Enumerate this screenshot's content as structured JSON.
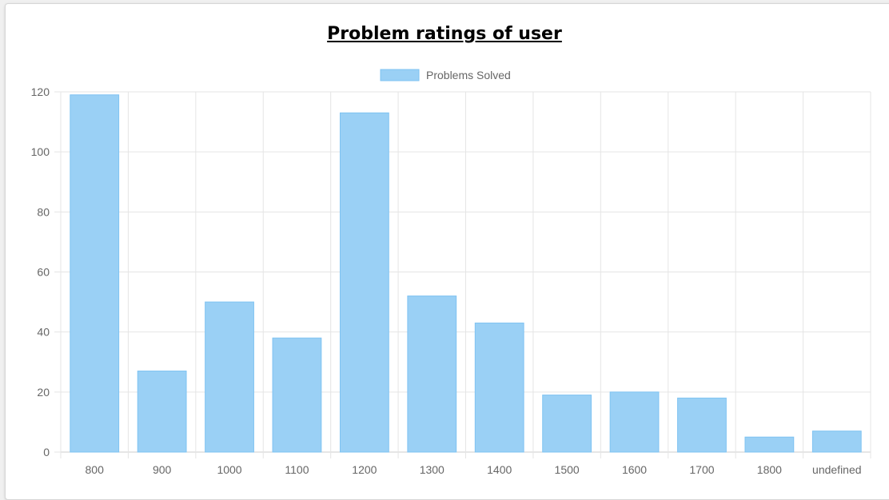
{
  "chart_data": {
    "type": "bar",
    "title": "Problem ratings of user",
    "categories": [
      "800",
      "900",
      "1000",
      "1100",
      "1200",
      "1300",
      "1400",
      "1500",
      "1600",
      "1700",
      "1800",
      "undefined"
    ],
    "series": [
      {
        "name": "Problems Solved",
        "values": [
          119,
          27,
          50,
          38,
          113,
          52,
          43,
          19,
          20,
          18,
          5,
          7
        ]
      }
    ],
    "xlabel": "",
    "ylabel": "",
    "ylim": [
      0,
      120
    ],
    "yticks": [
      "0",
      "20",
      "40",
      "60",
      "80",
      "100",
      "120"
    ],
    "grid": true,
    "legend_position": "top",
    "colors": {
      "bar_fill": "#9ad0f5",
      "bar_border": "#7fc3f2",
      "grid": "#e5e5e5",
      "axis": "#cccccc",
      "text": "#666666"
    }
  }
}
